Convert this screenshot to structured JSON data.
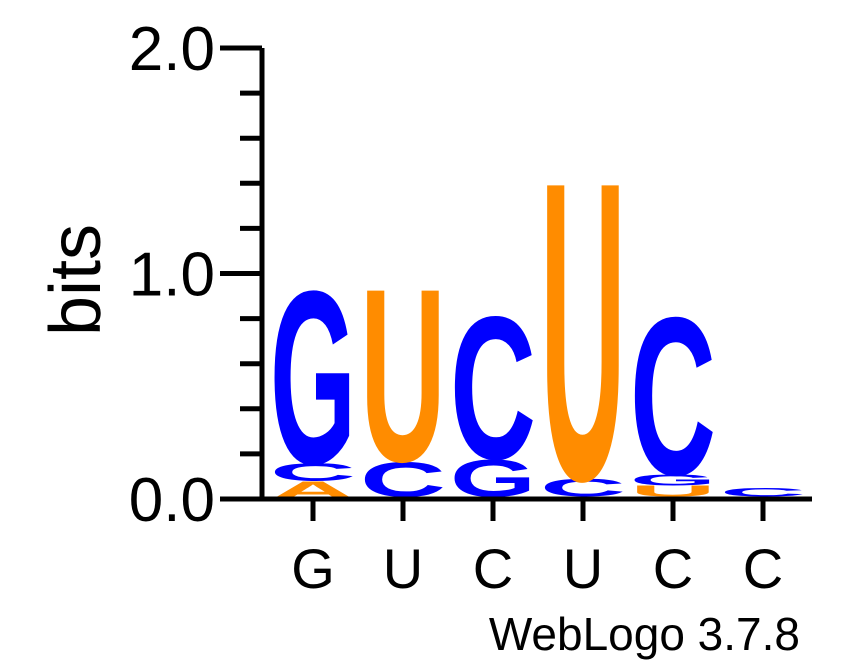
{
  "chart_data": {
    "type": "sequence-logo",
    "ylabel": "bits",
    "ylim": [
      0,
      2
    ],
    "yticks": [
      {
        "value": 0,
        "label": "0.0"
      },
      {
        "value": 1,
        "label": "1.0"
      },
      {
        "value": 2,
        "label": "2.0"
      }
    ],
    "yminor_step": 0.2,
    "positions": [
      {
        "consensus": "G",
        "stack": [
          {
            "letter": "A",
            "bits": 0.08
          },
          {
            "letter": "C",
            "bits": 0.08
          },
          {
            "letter": "G",
            "bits": 0.8
          }
        ]
      },
      {
        "consensus": "U",
        "stack": [
          {
            "letter": "G",
            "bits": 0.01
          },
          {
            "letter": "C",
            "bits": 0.16
          },
          {
            "letter": "U",
            "bits": 0.8
          }
        ]
      },
      {
        "consensus": "C",
        "stack": [
          {
            "letter": "U",
            "bits": 0.01
          },
          {
            "letter": "G",
            "bits": 0.17
          },
          {
            "letter": "C",
            "bits": 0.66
          }
        ]
      },
      {
        "consensus": "U",
        "stack": [
          {
            "letter": "A",
            "bits": 0.01
          },
          {
            "letter": "C",
            "bits": 0.08
          },
          {
            "letter": "U",
            "bits": 1.38
          }
        ]
      },
      {
        "consensus": "C",
        "stack": [
          {
            "letter": "A",
            "bits": 0.01
          },
          {
            "letter": "U",
            "bits": 0.05
          },
          {
            "letter": "G",
            "bits": 0.05
          },
          {
            "letter": "C",
            "bits": 0.73
          }
        ]
      },
      {
        "consensus": "C",
        "stack": [
          {
            "letter": "U",
            "bits": 0.01
          },
          {
            "letter": "C",
            "bits": 0.04
          }
        ]
      }
    ],
    "colors": {
      "A": "#ff8c00",
      "C": "#0000ff",
      "G": "#0000ff",
      "U": "#ff8c00"
    },
    "footer": "WebLogo 3.7.8"
  }
}
